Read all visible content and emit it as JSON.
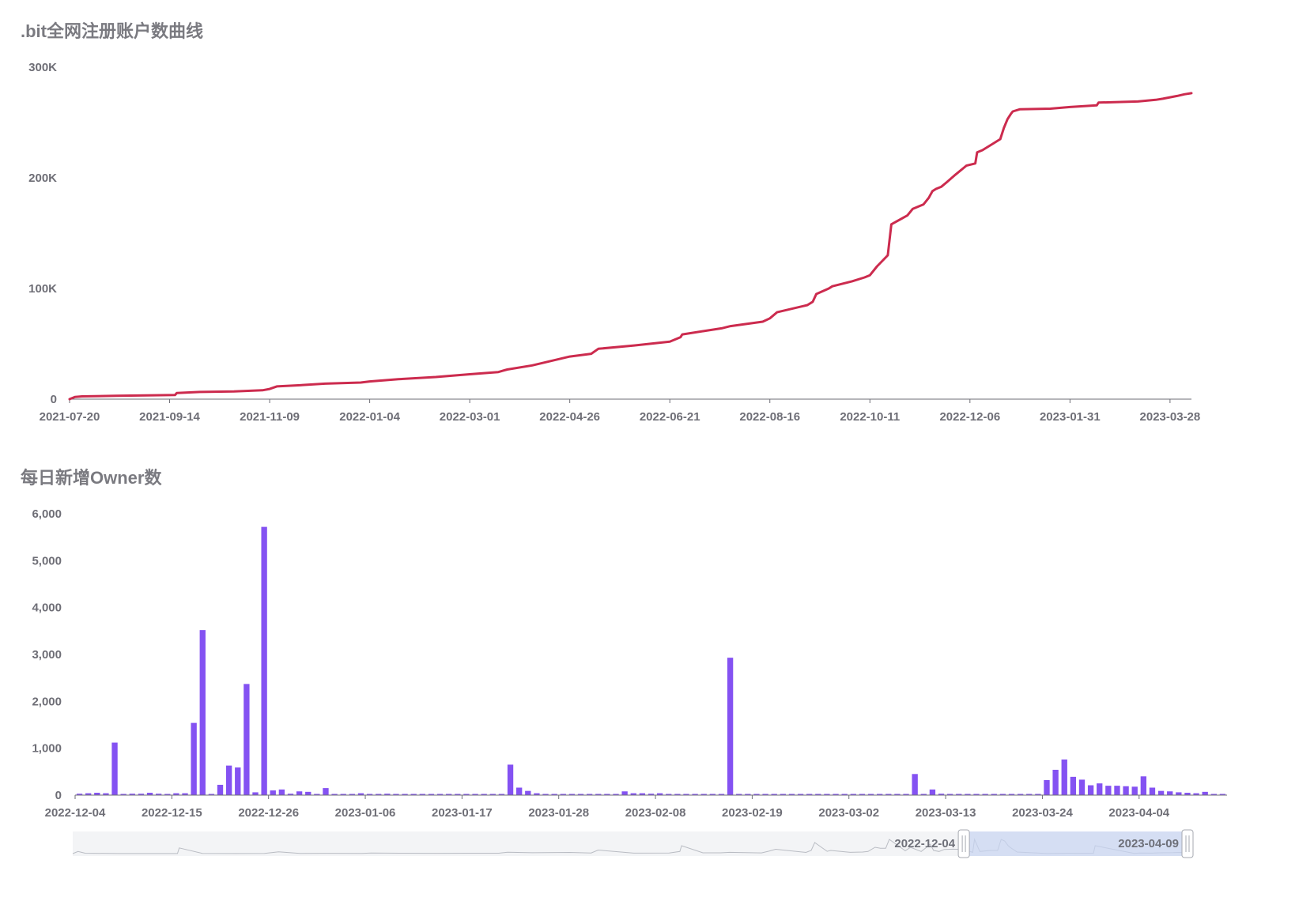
{
  "chart_data": [
    {
      "type": "line",
      "title": ".bit全网注册账户数曲线",
      "xlabel": "",
      "ylabel": "",
      "ylim": [
        0,
        300000
      ],
      "ytick_labels": [
        "0",
        "100K",
        "200K",
        "300K"
      ],
      "yticks": [
        0,
        100000,
        200000,
        300000
      ],
      "xlim": [
        "2021-07-20",
        "2023-04-09"
      ],
      "xtick_labels": [
        "2021-07-20",
        "2021-09-14",
        "2021-11-09",
        "2022-01-04",
        "2022-03-01",
        "2022-04-26",
        "2022-06-21",
        "2022-08-16",
        "2022-10-11",
        "2022-12-06",
        "2023-01-31",
        "2023-03-28"
      ],
      "grid": false,
      "color": "#cc2b4e",
      "series": [
        {
          "x": [
            "2021-07-20",
            "2021-07-23",
            "2021-07-27",
            "2021-08-15",
            "2021-09-05",
            "2021-09-17",
            "2021-09-18",
            "2021-10-01",
            "2021-10-20",
            "2021-11-05",
            "2021-11-09",
            "2021-11-13",
            "2021-11-25",
            "2021-12-10",
            "2021-12-30",
            "2022-01-04",
            "2022-01-20",
            "2022-02-10",
            "2022-03-01",
            "2022-03-17",
            "2022-03-22",
            "2022-04-05",
            "2022-04-26",
            "2022-05-08",
            "2022-05-12",
            "2022-06-01",
            "2022-06-21",
            "2022-06-27",
            "2022-06-28",
            "2022-07-10",
            "2022-07-20",
            "2022-07-25",
            "2022-08-12",
            "2022-08-16",
            "2022-08-20",
            "2022-09-06",
            "2022-09-09",
            "2022-09-11",
            "2022-09-18",
            "2022-09-20",
            "2022-10-01",
            "2022-10-08",
            "2022-10-11",
            "2022-10-15",
            "2022-10-18",
            "2022-10-21",
            "2022-10-23",
            "2022-11-01",
            "2022-11-04",
            "2022-11-10",
            "2022-11-13",
            "2022-11-15",
            "2022-11-17",
            "2022-11-20",
            "2022-11-23",
            "2022-11-28",
            "2022-12-04",
            "2022-12-09",
            "2022-12-10",
            "2022-12-13",
            "2022-12-19",
            "2022-12-23",
            "2022-12-25",
            "2022-12-27",
            "2022-12-29",
            "2022-12-30",
            "2023-01-03",
            "2023-01-20",
            "2023-01-31",
            "2023-02-15",
            "2023-02-16",
            "2023-03-10",
            "2023-03-13",
            "2023-03-20",
            "2023-03-24",
            "2023-04-01",
            "2023-04-05",
            "2023-04-09"
          ],
          "y": [
            0,
            2000,
            2500,
            3000,
            3500,
            3700,
            5500,
            6500,
            7000,
            8000,
            9200,
            11500,
            12500,
            14000,
            15000,
            16000,
            18000,
            20000,
            22500,
            24500,
            26800,
            30500,
            38500,
            41000,
            45500,
            48500,
            52000,
            56000,
            58500,
            61500,
            64000,
            66000,
            70000,
            73000,
            78500,
            85000,
            88000,
            95000,
            100000,
            102000,
            106500,
            110000,
            112000,
            120000,
            125000,
            130000,
            158000,
            166000,
            172000,
            176000,
            182000,
            188000,
            190000,
            192000,
            196000,
            203000,
            211000,
            213000,
            223000,
            225000,
            231000,
            235000,
            245000,
            253000,
            258000,
            260000,
            262000,
            262500,
            264000,
            265500,
            268000,
            269000,
            269500,
            270500,
            271500,
            274000,
            275500,
            276500
          ]
        }
      ]
    },
    {
      "type": "bar",
      "title": "每日新增Owner数",
      "xlabel": "",
      "ylabel": "",
      "ylim": [
        0,
        6000
      ],
      "yticks": [
        0,
        1000,
        2000,
        3000,
        4000,
        5000,
        6000
      ],
      "ytick_labels": [
        "0",
        "1,000",
        "2,000",
        "3,000",
        "4,000",
        "5,000",
        "6,000"
      ],
      "xtick_labels": [
        "2022-12-04",
        "2022-12-15",
        "2022-12-26",
        "2023-01-06",
        "2023-01-17",
        "2023-01-28",
        "2023-02-08",
        "2023-02-19",
        "2023-03-02",
        "2023-03-13",
        "2023-03-24",
        "2023-04-04"
      ],
      "grid": false,
      "color": "#8452f2",
      "start_date": "2022-12-04",
      "values": [
        30,
        40,
        50,
        40,
        1120,
        20,
        30,
        30,
        50,
        30,
        20,
        40,
        40,
        1540,
        3520,
        20,
        220,
        630,
        590,
        2370,
        60,
        5720,
        100,
        120,
        30,
        80,
        70,
        20,
        150,
        20,
        20,
        20,
        40,
        20,
        10,
        30,
        10,
        10,
        10,
        10,
        10,
        10,
        10,
        10,
        10,
        20,
        20,
        10,
        10,
        650,
        160,
        90,
        40,
        20,
        20,
        20,
        10,
        20,
        20,
        20,
        10,
        10,
        80,
        40,
        40,
        30,
        40,
        20,
        20,
        10,
        20,
        10,
        10,
        10,
        2930,
        10,
        10,
        10,
        10,
        10,
        20,
        10,
        10,
        10,
        10,
        10,
        10,
        10,
        10,
        20,
        10,
        20,
        10,
        10,
        10,
        450,
        10,
        120,
        30,
        10,
        10,
        10,
        10,
        10,
        10,
        10,
        10,
        10,
        10,
        20,
        320,
        540,
        760,
        390,
        330,
        210,
        250,
        200,
        200,
        190,
        180,
        400,
        160,
        90,
        80,
        60,
        50,
        40,
        70,
        20,
        10
      ],
      "zoom": {
        "range_start": "2022-12-04",
        "range_end": "2023-04-09"
      }
    }
  ]
}
